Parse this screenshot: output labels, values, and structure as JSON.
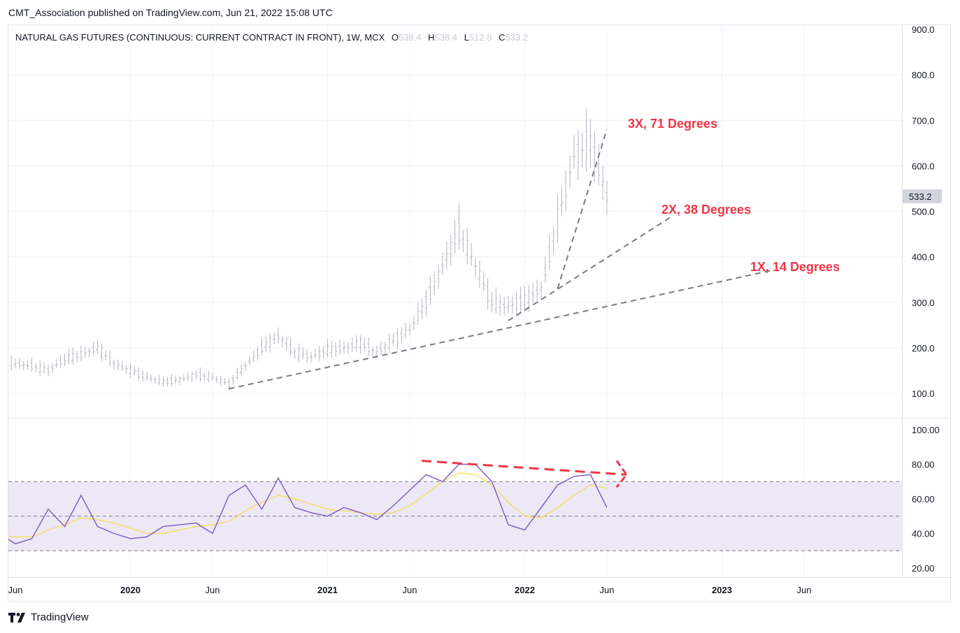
{
  "publisher_line": "CMT_Association published on TradingView.com, Jun 21, 2022 15:08 UTC",
  "legend": {
    "symbol": "NATURAL GAS FUTURES (CONTINUOUS: CURRENT CONTRACT IN FRONT), 1W, MCX",
    "o_label": "O",
    "o_value": "538.4",
    "h_label": "H",
    "h_value": "538.4",
    "l_label": "L",
    "l_value": "512.8",
    "c_label": "C",
    "c_value": "533.2"
  },
  "last_price_label": "533.2",
  "annotations": {
    "line_3x": "3X, 71 Degrees",
    "line_2x": "2X, 38 Degrees",
    "line_1x": "1X, 14 Degrees"
  },
  "brand": "TradingView",
  "colors": {
    "bars": "#b2b5be",
    "rsi": "#7e57c2",
    "rsi_ma": "#f7dd44",
    "rsi_band": "#ede7f6",
    "annotation": "#f23645",
    "gann_lines": "#787b86"
  },
  "chart_data": [
    {
      "type": "line",
      "name": "price",
      "style": "ohlc-bars",
      "price_axis": [
        100.0,
        200.0,
        300.0,
        400.0,
        500.0,
        600.0,
        700.0,
        800.0,
        900.0
      ],
      "price_axis_labels": [
        "100.0",
        "200.0",
        "300.0",
        "400.0",
        "500.0",
        "600.0",
        "700.0",
        "800.0",
        "900.0"
      ],
      "ylim": [
        60,
        900
      ],
      "time_axis_labels": [
        "Jun",
        "2020",
        "Jun",
        "2021",
        "Jun",
        "2022",
        "Jun",
        "2023",
        "Jun"
      ],
      "time_axis_dates": [
        "2019-06",
        "2020-01",
        "2020-06",
        "2021-01",
        "2021-06",
        "2022-01",
        "2022-06",
        "2023-01",
        "2023-06"
      ],
      "x": [
        "2019-05",
        "2019-06",
        "2019-07",
        "2019-08",
        "2019-09",
        "2019-10",
        "2019-11",
        "2019-12",
        "2020-01",
        "2020-02",
        "2020-03",
        "2020-04",
        "2020-05",
        "2020-06",
        "2020-07",
        "2020-08",
        "2020-09",
        "2020-10",
        "2020-11",
        "2020-12",
        "2021-01",
        "2021-02",
        "2021-03",
        "2021-04",
        "2021-05",
        "2021-06",
        "2021-07",
        "2021-08",
        "2021-09",
        "2021-10",
        "2021-11",
        "2021-12",
        "2022-01",
        "2022-02",
        "2022-03",
        "2022-04",
        "2022-05",
        "2022-06"
      ],
      "close": [
        180,
        165,
        160,
        150,
        175,
        185,
        200,
        165,
        150,
        135,
        125,
        130,
        140,
        135,
        120,
        160,
        200,
        225,
        190,
        180,
        195,
        200,
        210,
        190,
        215,
        240,
        300,
        380,
        460,
        380,
        300,
        290,
        305,
        330,
        480,
        620,
        650,
        533
      ],
      "last_value": 533.2,
      "gann_fan": [
        {
          "label": "1X, 14 Degrees",
          "from": [
            "2020-07",
            110
          ],
          "to": [
            "2023-04",
            370
          ]
        },
        {
          "label": "2X, 38 Degrees",
          "from": [
            "2021-12",
            260
          ],
          "to": [
            "2022-10",
            490
          ]
        },
        {
          "label": "3X, 71 Degrees",
          "from": [
            "2022-03",
            330
          ],
          "to": [
            "2022-06",
            680
          ]
        }
      ]
    },
    {
      "type": "line",
      "name": "rsi",
      "axis": [
        20.0,
        40.0,
        60.0,
        80.0,
        100.0
      ],
      "axis_labels": [
        "20.00",
        "40.00",
        "60.00",
        "80.00",
        "100.00"
      ],
      "ylim": [
        15,
        105
      ],
      "bands": [
        30,
        50,
        70
      ],
      "x": [
        "2019-05",
        "2019-06",
        "2019-07",
        "2019-08",
        "2019-09",
        "2019-10",
        "2019-11",
        "2019-12",
        "2020-01",
        "2020-02",
        "2020-03",
        "2020-04",
        "2020-05",
        "2020-06",
        "2020-07",
        "2020-08",
        "2020-09",
        "2020-10",
        "2020-11",
        "2020-12",
        "2021-01",
        "2021-02",
        "2021-03",
        "2021-04",
        "2021-05",
        "2021-06",
        "2021-07",
        "2021-08",
        "2021-09",
        "2021-10",
        "2021-11",
        "2021-12",
        "2022-01",
        "2022-02",
        "2022-03",
        "2022-04",
        "2022-05",
        "2022-06"
      ],
      "series": [
        {
          "values": [
            40,
            34,
            37,
            54,
            44,
            62,
            44,
            40,
            37,
            38,
            44,
            45,
            46,
            40,
            62,
            68,
            54,
            72,
            55,
            52,
            50,
            55,
            52,
            48,
            56,
            65,
            74,
            70,
            80,
            80,
            70,
            45,
            42,
            55,
            68,
            73,
            74,
            55
          ]
        },
        {
          "values": [
            39,
            38,
            38,
            42,
            45,
            49,
            48,
            46,
            43,
            40,
            40,
            42,
            44,
            45,
            47,
            53,
            58,
            62,
            60,
            57,
            54,
            53,
            52,
            51,
            52,
            56,
            63,
            70,
            75,
            74,
            68,
            58,
            50,
            49,
            55,
            62,
            68,
            66
          ]
        }
      ],
      "divergence_line": {
        "from": [
          "2021-08",
          82
        ],
        "to": [
          "2022-06",
          74
        ]
      }
    }
  ]
}
